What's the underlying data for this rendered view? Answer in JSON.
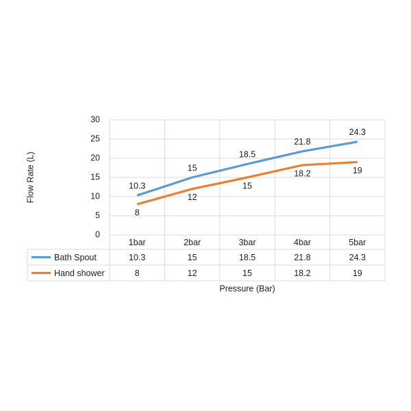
{
  "chart_data": {
    "type": "line",
    "x_label": "Pressure (Bar)",
    "y_label": "Flow Rate (L)",
    "categories": [
      "1bar",
      "2bar",
      "3bar",
      "4bar",
      "5bar"
    ],
    "series": [
      {
        "name": "Bath Spout",
        "color": "#5b9bd5",
        "values": [
          10.3,
          15,
          18.5,
          21.8,
          24.3
        ]
      },
      {
        "name": "Hand shower",
        "color": "#ed7d31",
        "values": [
          8,
          12,
          15,
          18.2,
          19
        ]
      }
    ],
    "ylim": [
      0,
      30
    ],
    "yticks": [
      0,
      5,
      10,
      15,
      20,
      25,
      30
    ],
    "grid": true
  }
}
